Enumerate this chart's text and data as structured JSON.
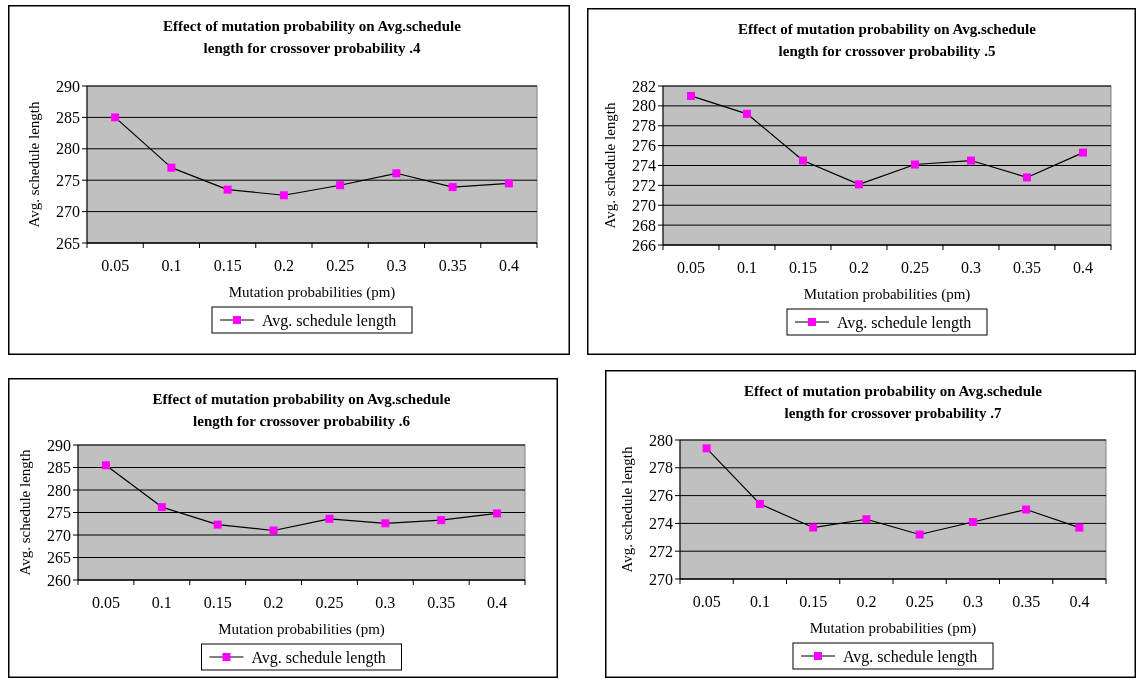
{
  "chart_data": [
    {
      "type": "line",
      "title": "Effect of mutation probability on Avg.schedule length for crossover probability .4",
      "xlabel": "Mutation probabilities (pm)",
      "ylabel": "Avg. schedule length",
      "categories": [
        "0.05",
        "0.1",
        "0.15",
        "0.2",
        "0.25",
        "0.3",
        "0.35",
        "0.4"
      ],
      "series": [
        {
          "name": "Avg. schedule length",
          "color": "#ff00ff",
          "values": [
            285,
            277,
            273.5,
            272.6,
            274.2,
            276.1,
            273.9,
            274.5
          ]
        }
      ],
      "ylim": [
        265,
        290
      ],
      "yticks": [
        265,
        270,
        275,
        280,
        285,
        290
      ],
      "grid": "y",
      "legend": "bottom",
      "marker": "square"
    },
    {
      "type": "line",
      "title": "Effect of mutation probability on Avg.schedule length for crossover probability .5",
      "xlabel": "Mutation probabilities (pm)",
      "ylabel": "Avg. schedule length",
      "categories": [
        "0.05",
        "0.1",
        "0.15",
        "0.2",
        "0.25",
        "0.3",
        "0.35",
        "0.4"
      ],
      "series": [
        {
          "name": "Avg. schedule length",
          "color": "#ff00ff",
          "values": [
            281,
            279.2,
            274.5,
            272.1,
            274.1,
            274.5,
            272.8,
            275.3
          ]
        }
      ],
      "ylim": [
        266,
        282
      ],
      "yticks": [
        266,
        268,
        270,
        272,
        274,
        276,
        278,
        280,
        282
      ],
      "grid": "y",
      "legend": "bottom",
      "marker": "square"
    },
    {
      "type": "line",
      "title": "Effect of mutation probability on Avg.schedule length for crossover probability .6",
      "xlabel": "Mutation probabilities (pm)",
      "ylabel": "Avg. schedule length",
      "categories": [
        "0.05",
        "0.1",
        "0.15",
        "0.2",
        "0.25",
        "0.3",
        "0.35",
        "0.4"
      ],
      "series": [
        {
          "name": "Avg. schedule length",
          "color": "#ff00ff",
          "values": [
            285.5,
            276.2,
            272.3,
            271,
            273.6,
            272.6,
            273.3,
            274.8
          ]
        }
      ],
      "ylim": [
        260,
        290
      ],
      "yticks": [
        260,
        265,
        270,
        275,
        280,
        285,
        290
      ],
      "grid": "y",
      "legend": "bottom",
      "marker": "square"
    },
    {
      "type": "line",
      "title": "Effect of mutation probability on Avg.schedule length for crossover probability .7",
      "xlabel": "Mutation probabilities (pm)",
      "ylabel": "Avg. schedule length",
      "categories": [
        "0.05",
        "0.1",
        "0.15",
        "0.2",
        "0.25",
        "0.3",
        "0.35",
        "0.4"
      ],
      "series": [
        {
          "name": "Avg. schedule length",
          "color": "#ff00ff",
          "values": [
            279.4,
            275.4,
            273.7,
            274.3,
            273.2,
            274.1,
            275.0,
            273.7
          ]
        }
      ],
      "ylim": [
        270,
        280
      ],
      "yticks": [
        270,
        272,
        274,
        276,
        278,
        280
      ],
      "grid": "y",
      "legend": "bottom",
      "marker": "square"
    }
  ]
}
